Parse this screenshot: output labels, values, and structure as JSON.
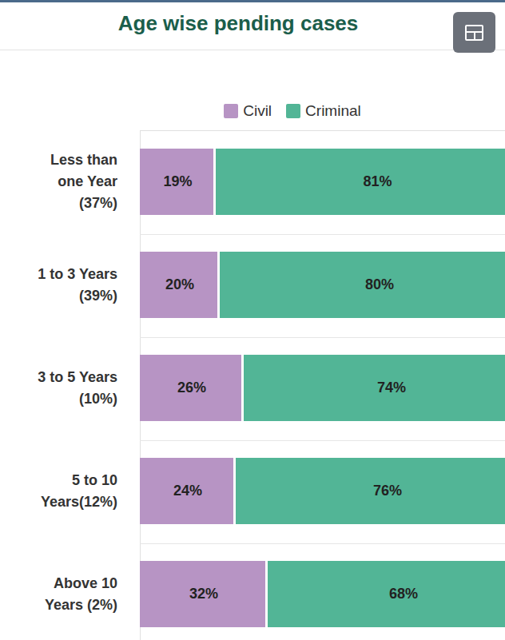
{
  "chart_data": {
    "type": "bar",
    "title": "Age wise pending cases",
    "orientation": "horizontal",
    "stacked": true,
    "data_labels": true,
    "tick_labels": false,
    "legend": "top",
    "categories": [
      "Less than\none Year\n(37%)",
      "1 to 3 Years\n(39%)",
      "3 to 5 Years\n(10%)",
      "5 to 10\nYears(12%)",
      "Above 10\nYears (2%)"
    ],
    "series": [
      {
        "name": "Civil",
        "color": "#b794c4",
        "values": [
          19,
          20,
          26,
          24,
          32
        ],
        "value_labels": [
          "19%",
          "20%",
          "26%",
          "24%",
          "32%"
        ]
      },
      {
        "name": "Criminal",
        "color": "#52b596",
        "values": [
          81,
          80,
          74,
          76,
          68
        ],
        "value_labels": [
          "81%",
          "80%",
          "74%",
          "76%",
          "68%"
        ]
      }
    ],
    "xlim": [
      0,
      100
    ]
  }
}
